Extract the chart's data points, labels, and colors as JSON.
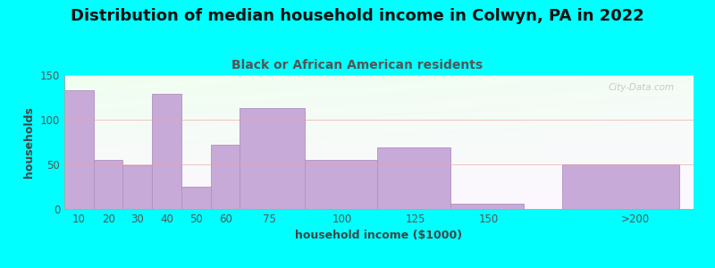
{
  "title": "Distribution of median household income in Colwyn, PA in 2022",
  "subtitle": "Black or African American residents",
  "xlabel": "household income ($1000)",
  "ylabel": "households",
  "background_color": "#00FFFF",
  "bar_color": "#c8aad8",
  "bar_edge_color": "#b090c0",
  "categories": [
    "10",
    "20",
    "30",
    "40",
    "50",
    "60",
    "75",
    "100",
    "125",
    "150",
    ">200"
  ],
  "values": [
    133,
    55,
    49,
    129,
    25,
    72,
    113,
    55,
    69,
    6,
    50
  ],
  "bar_lefts": [
    5,
    15,
    25,
    35,
    45,
    55,
    65,
    87,
    112,
    137,
    175
  ],
  "bar_widths": [
    10,
    10,
    10,
    10,
    10,
    10,
    22,
    25,
    25,
    25,
    40
  ],
  "xtick_positions": [
    10,
    20,
    30,
    40,
    50,
    60,
    75,
    100,
    125,
    150,
    200
  ],
  "xtick_labels": [
    "10",
    "20",
    "30",
    "40",
    "50",
    "60",
    "75",
    "100",
    "125",
    "150",
    ">200"
  ],
  "xlim": [
    5,
    220
  ],
  "ylim": [
    0,
    150
  ],
  "yticks": [
    0,
    50,
    100,
    150
  ],
  "title_fontsize": 13,
  "subtitle_fontsize": 10,
  "axis_label_fontsize": 9,
  "tick_fontsize": 8.5,
  "watermark": "City-Data.com"
}
